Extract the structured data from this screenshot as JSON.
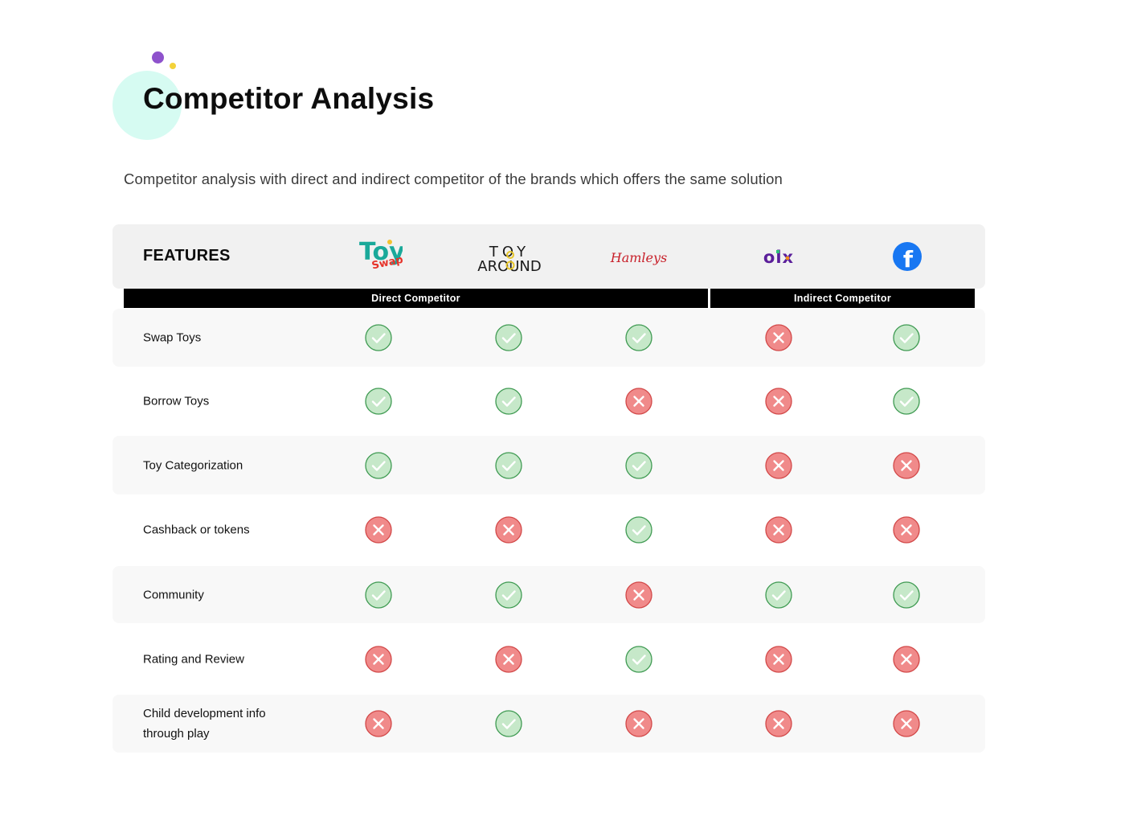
{
  "page": {
    "title": "Competitor Analysis",
    "subtitle": "Competitor analysis with direct and indirect competitor of the brands which offers the same solution"
  },
  "table": {
    "features_label": "FEATURES",
    "competitors": [
      {
        "name": "ToySwap",
        "logo_icon": "toyswap-logo",
        "logo_text": [
          "Toy",
          "Swap"
        ]
      },
      {
        "name": "Toy Around",
        "logo_icon": "toyaround-logo",
        "logo_text": [
          "TOY",
          "AROUND"
        ]
      },
      {
        "name": "Hamleys",
        "logo_icon": "hamleys-logo",
        "logo_text": [
          "Hamleys"
        ]
      },
      {
        "name": "OLX",
        "logo_icon": "olx-logo",
        "logo_text": [
          "olx"
        ]
      },
      {
        "name": "Facebook",
        "logo_icon": "facebook-logo",
        "logo_text": [
          "f"
        ]
      }
    ],
    "groups": {
      "direct": "Direct Competitor",
      "indirect": "Indirect  Competitor"
    },
    "rows": [
      {
        "feature": "Swap Toys",
        "values": [
          true,
          true,
          true,
          false,
          true
        ]
      },
      {
        "feature": "Borrow Toys",
        "values": [
          true,
          true,
          false,
          false,
          true
        ]
      },
      {
        "feature": "Toy Categorization",
        "values": [
          true,
          true,
          true,
          false,
          false
        ]
      },
      {
        "feature": "Cashback or tokens",
        "values": [
          false,
          false,
          true,
          false,
          false
        ]
      },
      {
        "feature": "Community",
        "values": [
          true,
          true,
          false,
          true,
          true
        ]
      },
      {
        "feature": "Rating and Review",
        "values": [
          false,
          false,
          true,
          false,
          false
        ]
      },
      {
        "feature": "Child development info through play",
        "values": [
          false,
          true,
          false,
          false,
          false
        ]
      }
    ]
  },
  "colors": {
    "check_fill": "#c6e8c9",
    "check_stroke": "#3f9a52",
    "cross_fill": "#f08a8a",
    "cross_stroke": "#d24848",
    "deco_circle": "#d6fbf2",
    "deco_purple": "#8e52cc",
    "deco_yellow": "#f3d23a"
  }
}
